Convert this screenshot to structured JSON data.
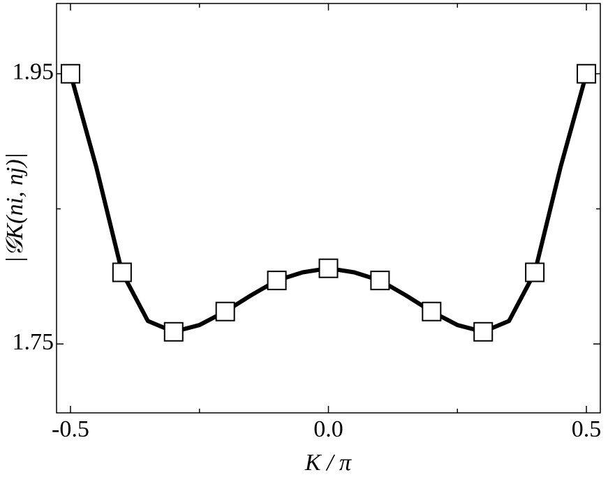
{
  "chart_data": {
    "type": "line",
    "xlabel": "K / π",
    "ylabel": "|𝒢K(ni, nj)|",
    "xlim": [
      -0.527,
      0.527
    ],
    "ylim": [
      1.699,
      2.002
    ],
    "xticks": [
      -0.5,
      {
        "value": 0,
        "label": "0.0"
      },
      0.5
    ],
    "xminorticks": [
      -0.25,
      0.25
    ],
    "yticks": [
      1.75,
      1.95
    ],
    "yminorticks": [
      1.85
    ],
    "color": "#000000",
    "line": {
      "x": [
        -0.5,
        -0.45,
        -0.4,
        -0.35,
        -0.3,
        -0.25,
        -0.2,
        -0.15,
        -0.1,
        -0.05,
        0,
        0.05,
        0.1,
        0.15,
        0.2,
        0.25,
        0.3,
        0.35,
        0.4,
        0.45,
        0.5
      ],
      "values": [
        1.95,
        1.881,
        1.803,
        1.767,
        1.759,
        1.764,
        1.774,
        1.786,
        1.797,
        1.803,
        1.806,
        1.803,
        1.797,
        1.786,
        1.774,
        1.764,
        1.759,
        1.767,
        1.803,
        1.881,
        1.95
      ]
    },
    "markers": {
      "x": [
        -0.5,
        -0.4,
        -0.3,
        -0.2,
        -0.1,
        0,
        0.1,
        0.2,
        0.3,
        0.4,
        0.5
      ],
      "values": [
        1.95,
        1.803,
        1.759,
        1.774,
        1.797,
        1.806,
        1.797,
        1.774,
        1.759,
        1.803,
        1.95
      ]
    }
  }
}
